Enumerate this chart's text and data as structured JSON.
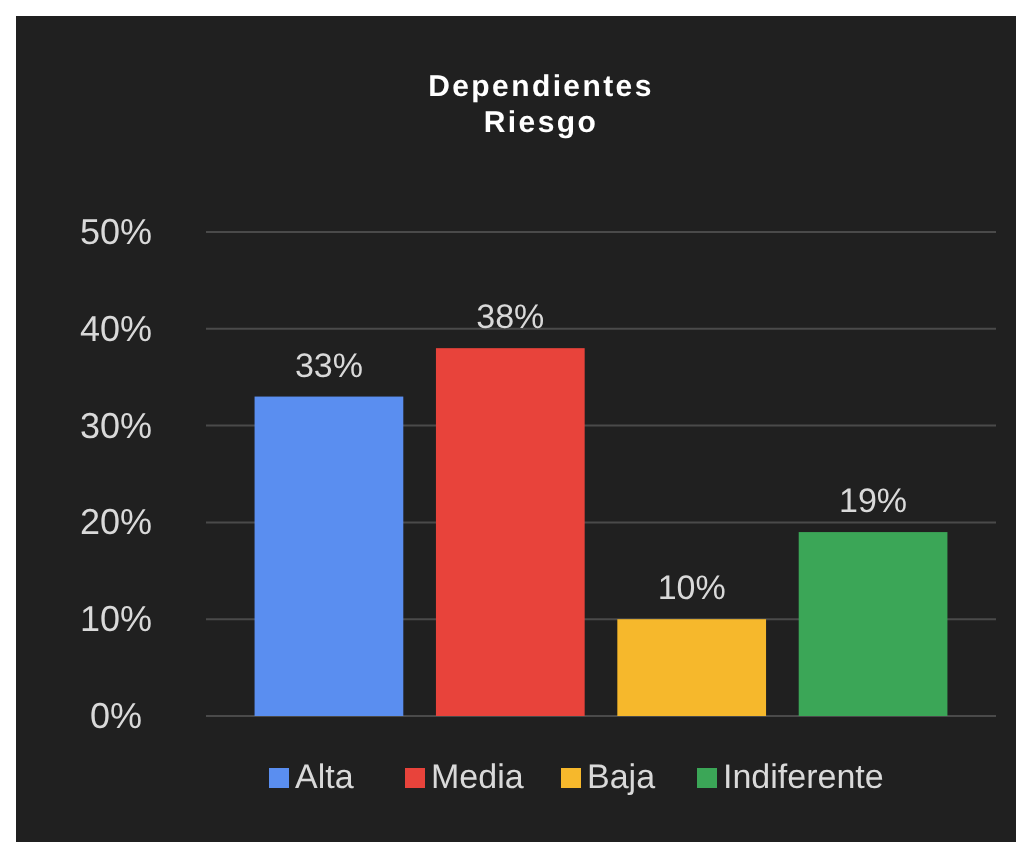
{
  "chart_data": {
    "type": "bar",
    "title": "Dependientes\nRiesgo",
    "categories": [
      null
    ],
    "series": [
      {
        "name": "Alta",
        "color": "#5a8ef0",
        "values": [
          33
        ],
        "value_labels": [
          "33%"
        ]
      },
      {
        "name": "Media",
        "color": "#e8433b",
        "values": [
          38
        ],
        "value_labels": [
          "38%"
        ]
      },
      {
        "name": "Baja",
        "color": "#f6b82c",
        "values": [
          10
        ],
        "value_labels": [
          "10%"
        ]
      },
      {
        "name": "Indiferente",
        "color": "#3ba657",
        "values": [
          19
        ],
        "value_labels": [
          "19%"
        ]
      }
    ],
    "ylim": [
      0,
      50
    ],
    "yticks": [
      {
        "value": 0,
        "label": "0%"
      },
      {
        "value": 10,
        "label": "10%"
      },
      {
        "value": 20,
        "label": "20%"
      },
      {
        "value": 30,
        "label": "30%"
      },
      {
        "value": 40,
        "label": "40%"
      },
      {
        "value": 50,
        "label": "50%"
      }
    ],
    "grid": "y",
    "legend": "bottom"
  }
}
